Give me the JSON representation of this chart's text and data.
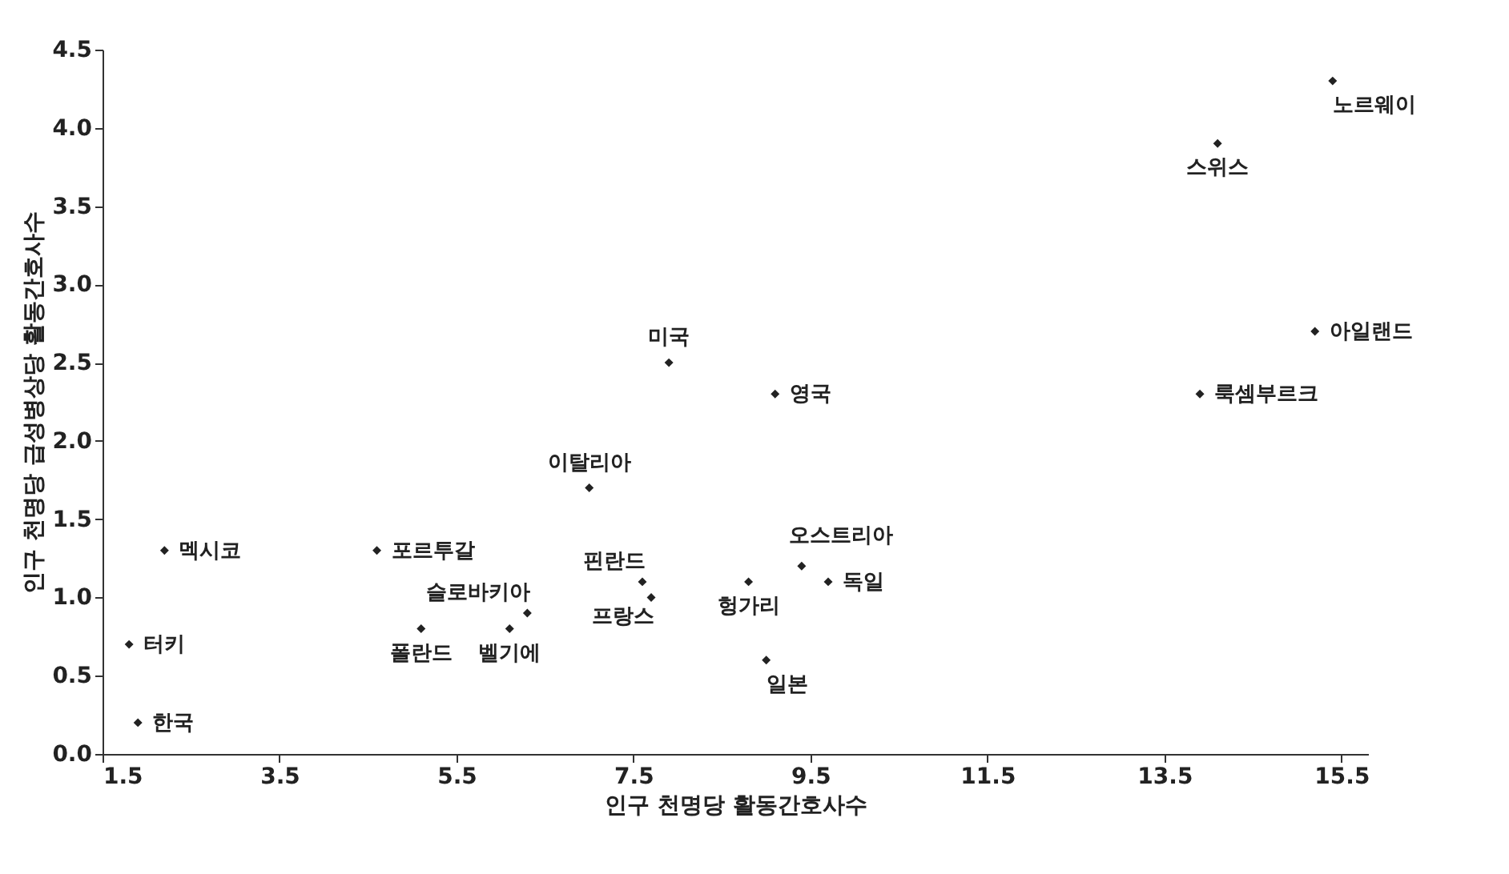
{
  "chart_data": {
    "type": "scatter",
    "xlabel": "인구 천명당 활동간호사수",
    "ylabel": "인구 천명당 급성병상당 활동간호사수",
    "x": [
      2.2,
      1.8,
      1.9,
      4.6,
      5.1,
      6.1,
      6.3,
      7.0,
      7.6,
      7.7,
      7.9,
      9.1,
      8.8,
      9.4,
      9.7,
      9.0,
      14.1,
      15.4,
      15.2,
      13.9
    ],
    "series": [
      {
        "color": "#222222",
        "values": [
          1.3,
          0.7,
          0.2,
          1.3,
          0.8,
          0.8,
          0.9,
          1.7,
          1.1,
          1.0,
          2.5,
          2.3,
          1.1,
          1.2,
          1.1,
          0.6,
          3.9,
          4.3,
          2.7,
          2.3
        ]
      }
    ],
    "annotations": [
      {
        "text": "멕시코",
        "x": 2.2,
        "y": 1.3
      },
      {
        "text": "터키",
        "x": 1.8,
        "y": 0.7
      },
      {
        "text": "한국",
        "x": 1.9,
        "y": 0.2
      },
      {
        "text": "포르투갈",
        "x": 4.6,
        "y": 1.3
      },
      {
        "text": "폴란드",
        "x": 5.1,
        "y": 0.8
      },
      {
        "text": "벨기에",
        "x": 6.1,
        "y": 0.8
      },
      {
        "text": "슬로바키아",
        "x": 6.3,
        "y": 0.9
      },
      {
        "text": "이탈리아",
        "x": 7.0,
        "y": 1.7
      },
      {
        "text": "핀란드",
        "x": 7.6,
        "y": 1.1
      },
      {
        "text": "프랑스",
        "x": 7.7,
        "y": 1.0
      },
      {
        "text": "미국",
        "x": 7.9,
        "y": 2.5
      },
      {
        "text": "영국",
        "x": 9.1,
        "y": 2.3
      },
      {
        "text": "헝가리",
        "x": 8.8,
        "y": 1.1
      },
      {
        "text": "오스트리아",
        "x": 9.4,
        "y": 1.2
      },
      {
        "text": "독일",
        "x": 9.7,
        "y": 1.1
      },
      {
        "text": "일본",
        "x": 9.0,
        "y": 0.6
      },
      {
        "text": "스위스",
        "x": 14.1,
        "y": 3.9
      },
      {
        "text": "노르웨이",
        "x": 15.4,
        "y": 4.3
      },
      {
        "text": "아일랜드",
        "x": 15.2,
        "y": 2.7
      },
      {
        "text": "룩셈부르크",
        "x": 13.9,
        "y": 2.3
      }
    ],
    "xlim": [
      1.5,
      15.8
    ],
    "xticks": [
      1.5,
      3.5,
      5.5,
      7.5,
      9.5,
      11.5,
      13.5,
      15.5
    ],
    "ylim": [
      0,
      4.5
    ],
    "yticks": [
      {
        "value": 0,
        "label": "0.0"
      },
      {
        "value": 0.5,
        "label": "0.5"
      },
      {
        "value": 1,
        "label": "1.0"
      },
      {
        "value": 1.5,
        "label": "1.5"
      },
      {
        "value": 2,
        "label": "2.0"
      },
      {
        "value": 2.5,
        "label": "2.5"
      },
      {
        "value": 3,
        "label": "3.0"
      },
      {
        "value": 3.5,
        "label": "3.5"
      },
      {
        "value": 4,
        "label": "4.0"
      },
      {
        "value": 4.5,
        "label": "4.5"
      }
    ],
    "grid": false,
    "marker": "diamond"
  }
}
